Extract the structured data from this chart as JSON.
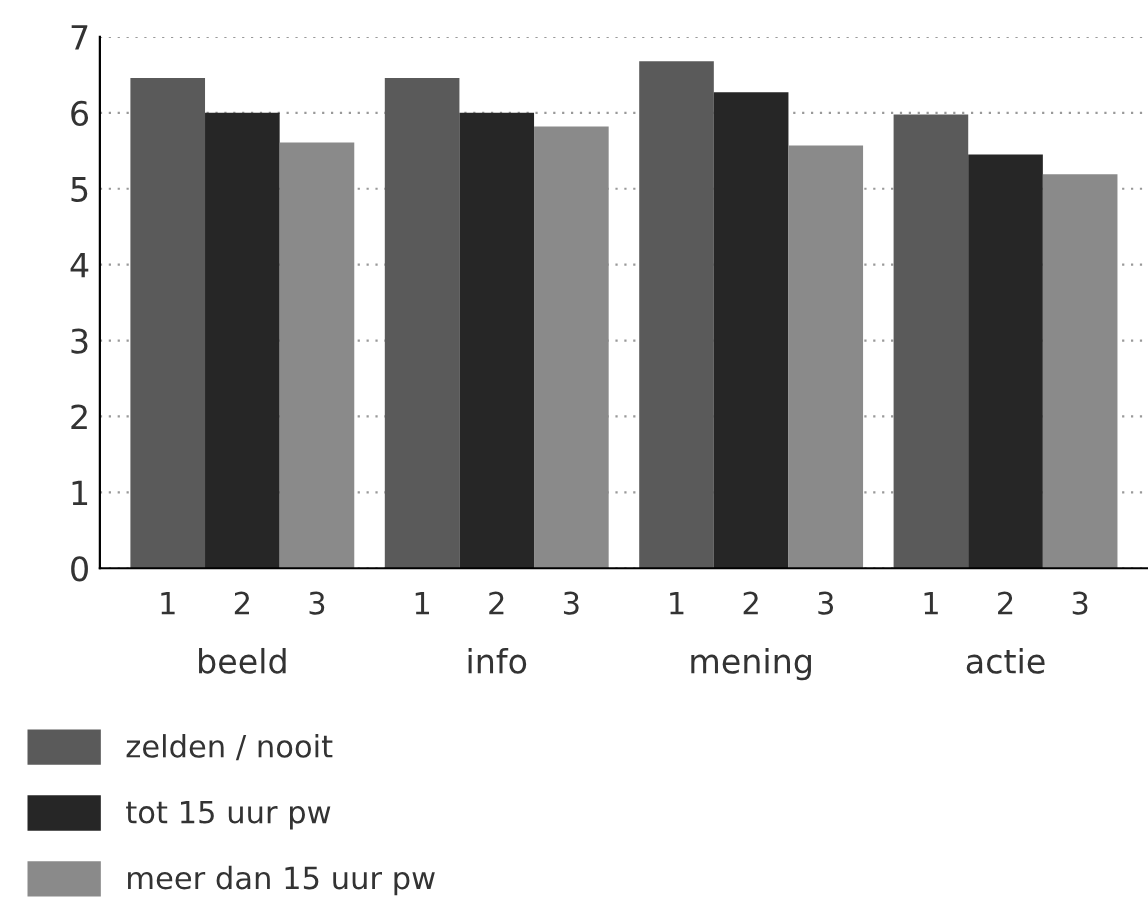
{
  "chart_data": {
    "type": "bar",
    "categories": [
      "beeld",
      "info",
      "mening",
      "actie"
    ],
    "series": [
      {
        "name": "zelden / nooit",
        "color": "#5a5a5a",
        "values": [
          6.46,
          6.46,
          6.68,
          5.98
        ]
      },
      {
        "name": "tot 15 uur pw",
        "color": "#262626",
        "values": [
          6.0,
          6.0,
          6.27,
          5.45
        ]
      },
      {
        "name": "meer dan 15 uur pw",
        "color": "#8a8a8a",
        "values": [
          5.61,
          5.82,
          5.57,
          5.19
        ]
      }
    ],
    "annotations": [
      "1",
      "2",
      "3"
    ],
    "ylim": [
      0,
      7
    ],
    "yticks": [
      0,
      1,
      2,
      3,
      4,
      5,
      6,
      7
    ],
    "grid": "y",
    "legend": "bottom left"
  }
}
